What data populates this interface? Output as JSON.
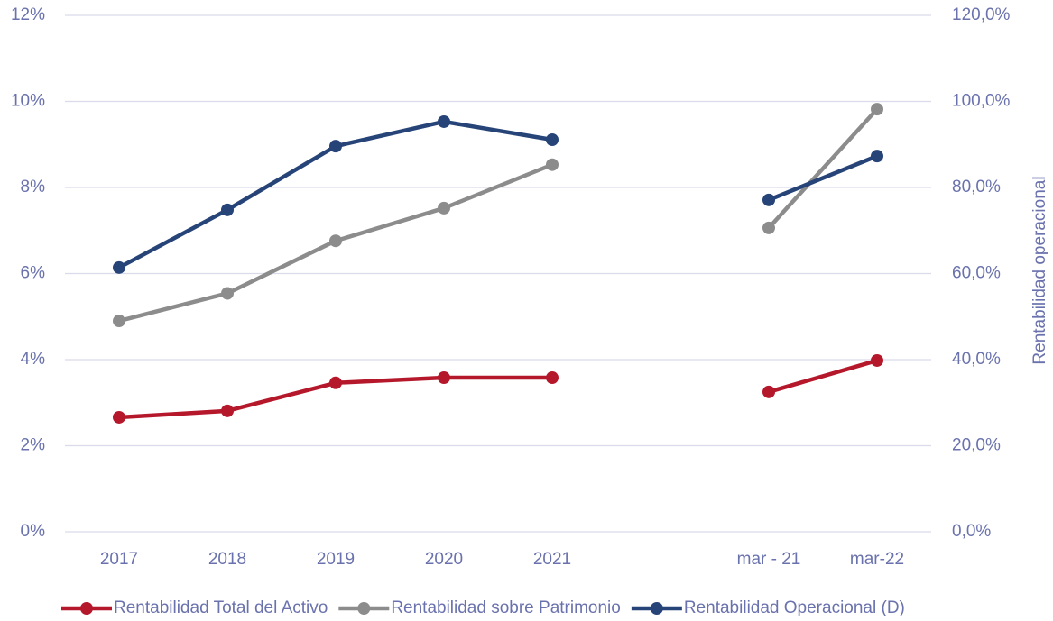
{
  "chart_data": {
    "type": "line",
    "categories": [
      "2017",
      "2018",
      "2019",
      "2020",
      "2021",
      null,
      "mar - 21",
      "mar-22"
    ],
    "series": [
      {
        "name": "Rentabilidad Total del Activo",
        "color": "#b5182b",
        "axis": "y",
        "values": [
          2.66,
          2.81,
          3.46,
          3.58,
          3.58,
          null,
          3.25,
          3.98
        ]
      },
      {
        "name": "Rentabilidad sobre Patrimonio",
        "color": "#8c8c8c",
        "axis": "y",
        "values": [
          4.9,
          5.54,
          6.76,
          7.52,
          8.53,
          null,
          7.06,
          9.82
        ]
      },
      {
        "name": "Rentabilidad Operacional (D)",
        "color": "#264478",
        "axis": "y2",
        "values": [
          61.4,
          74.8,
          89.6,
          95.3,
          91.1,
          null,
          77.1,
          87.3
        ]
      }
    ],
    "ylim": [
      0,
      12
    ],
    "yticks": [
      {
        "value": 0,
        "label": "0%"
      },
      {
        "value": 2,
        "label": "2%"
      },
      {
        "value": 4,
        "label": "4%"
      },
      {
        "value": 6,
        "label": "6%"
      },
      {
        "value": 8,
        "label": "8%"
      },
      {
        "value": 10,
        "label": "10%"
      },
      {
        "value": 12,
        "label": "12%"
      }
    ],
    "y2lim": [
      0,
      120
    ],
    "y2ticks": [
      {
        "value": 0,
        "label": "0,0%"
      },
      {
        "value": 20,
        "label": "20,0%"
      },
      {
        "value": 40,
        "label": "40,0%"
      },
      {
        "value": 60,
        "label": "60,0%"
      },
      {
        "value": 80,
        "label": "80,0%"
      },
      {
        "value": 100,
        "label": "100,0%"
      },
      {
        "value": 120,
        "label": "120,0%"
      }
    ],
    "y2label": "Rentabilidad operacional",
    "grid": true,
    "legend": "bottom"
  }
}
